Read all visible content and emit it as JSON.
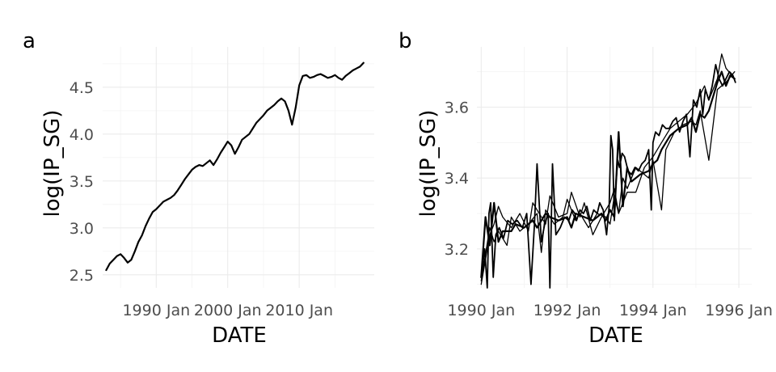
{
  "chart_data": [
    {
      "panel": "a",
      "type": "line",
      "xlabel": "DATE",
      "ylabel": "log(IP_SG)",
      "x_ticks": [
        {
          "value": 1990,
          "label": "1990 Jan"
        },
        {
          "value": 2000,
          "label": "2000 Jan"
        },
        {
          "value": 2010,
          "label": "2010 Jan"
        }
      ],
      "y_ticks": [
        2.5,
        3.0,
        3.5,
        4.0,
        4.5
      ],
      "xlim": [
        1982.5,
        2020.5
      ],
      "ylim": [
        2.36,
        4.93
      ],
      "grid": true,
      "series": [
        {
          "stroke_width": 2.2,
          "x": [
            1983.0,
            1983.5,
            1984.0,
            1984.5,
            1985.0,
            1985.5,
            1986.0,
            1986.5,
            1987.0,
            1987.5,
            1988.0,
            1988.5,
            1989.0,
            1989.5,
            1990.0,
            1990.5,
            1991.0,
            1991.5,
            1992.0,
            1992.5,
            1993.0,
            1993.5,
            1994.0,
            1994.5,
            1995.0,
            1995.5,
            1996.0,
            1996.5,
            1997.0,
            1997.5,
            1998.0,
            1998.5,
            1999.0,
            1999.5,
            2000.0,
            2000.5,
            2001.0,
            2001.5,
            2002.0,
            2002.5,
            2003.0,
            2003.5,
            2004.0,
            2004.5,
            2005.0,
            2005.5,
            2006.0,
            2006.5,
            2007.0,
            2007.5,
            2008.0,
            2008.5,
            2009.0,
            2009.5,
            2010.0,
            2010.5,
            2011.0,
            2011.5,
            2012.0,
            2012.5,
            2013.0,
            2013.5,
            2014.0,
            2014.5,
            2015.0,
            2015.5,
            2016.0,
            2016.5,
            2017.0,
            2017.5,
            2018.0,
            2018.5,
            2019.0
          ],
          "y": [
            2.55,
            2.62,
            2.66,
            2.7,
            2.72,
            2.68,
            2.63,
            2.66,
            2.75,
            2.85,
            2.92,
            3.02,
            3.1,
            3.17,
            3.2,
            3.24,
            3.28,
            3.3,
            3.32,
            3.35,
            3.4,
            3.46,
            3.52,
            3.57,
            3.62,
            3.65,
            3.67,
            3.66,
            3.69,
            3.72,
            3.67,
            3.73,
            3.8,
            3.86,
            3.92,
            3.88,
            3.79,
            3.86,
            3.94,
            3.97,
            4.0,
            4.06,
            4.12,
            4.16,
            4.2,
            4.25,
            4.28,
            4.31,
            4.35,
            4.38,
            4.35,
            4.25,
            4.1,
            4.28,
            4.52,
            4.62,
            4.63,
            4.6,
            4.61,
            4.63,
            4.64,
            4.62,
            4.6,
            4.61,
            4.63,
            4.6,
            4.58,
            4.62,
            4.65,
            4.68,
            4.7,
            4.72,
            4.76
          ]
        }
      ]
    },
    {
      "panel": "b",
      "type": "line",
      "xlabel": "DATE",
      "ylabel": "log(IP_SG)",
      "x_ticks": [
        {
          "value": 1990,
          "label": "1990 Jan"
        },
        {
          "value": 1992,
          "label": "1992 Jan"
        },
        {
          "value": 1994,
          "label": "1994 Jan"
        },
        {
          "value": 1996,
          "label": "1996 Jan"
        }
      ],
      "y_ticks": [
        3.2,
        3.4,
        3.6
      ],
      "xlim": [
        1989.9,
        1996.3
      ],
      "ylim": [
        3.09,
        3.77
      ],
      "grid": true,
      "series": [
        {
          "stroke_width": 1.3,
          "x": [
            1990.0,
            1990.1,
            1990.2,
            1990.3,
            1990.4,
            1990.5,
            1990.7,
            1990.9,
            1991.1,
            1991.2,
            1991.3,
            1991.5,
            1991.6,
            1991.8,
            1992.0,
            1992.1,
            1992.3,
            1992.4,
            1992.6,
            1992.8,
            1993.0,
            1993.1,
            1993.2,
            1993.4,
            1993.6,
            1993.8,
            1994.0,
            1994.2,
            1994.4,
            1994.6,
            1994.8,
            1995.0,
            1995.2,
            1995.3,
            1995.5,
            1995.6,
            1995.7,
            1995.9
          ],
          "y": [
            3.1,
            3.17,
            3.24,
            3.27,
            3.32,
            3.29,
            3.26,
            3.3,
            3.25,
            3.33,
            3.31,
            3.27,
            3.35,
            3.29,
            3.3,
            3.36,
            3.29,
            3.33,
            3.24,
            3.29,
            3.33,
            3.37,
            3.3,
            3.36,
            3.36,
            3.43,
            3.46,
            3.5,
            3.54,
            3.56,
            3.58,
            3.61,
            3.66,
            3.62,
            3.68,
            3.75,
            3.71,
            3.68
          ]
        },
        {
          "stroke_width": 2.2,
          "x": [
            1990.0,
            1990.1,
            1990.2,
            1990.3,
            1990.4,
            1990.5,
            1990.7,
            1990.8,
            1991.0,
            1991.2,
            1991.3,
            1991.5,
            1991.6,
            1991.8,
            1992.0,
            1992.1,
            1992.2,
            1992.4,
            1992.6,
            1992.7,
            1992.8,
            1992.9,
            1993.0,
            1993.1,
            1993.2,
            1993.3,
            1993.4,
            1993.5,
            1993.7,
            1993.9,
            1994.0,
            1994.1,
            1994.2,
            1994.4,
            1994.6,
            1994.8,
            1994.9,
            1995.0,
            1995.1,
            1995.2,
            1995.3,
            1995.4,
            1995.5,
            1995.6,
            1995.7,
            1995.8,
            1995.9
          ],
          "y": [
            3.12,
            3.29,
            3.21,
            3.33,
            3.22,
            3.25,
            3.25,
            3.27,
            3.26,
            3.28,
            3.26,
            3.3,
            3.29,
            3.28,
            3.29,
            3.26,
            3.3,
            3.29,
            3.28,
            3.29,
            3.3,
            3.28,
            3.31,
            3.29,
            3.53,
            3.32,
            3.43,
            3.39,
            3.41,
            3.42,
            3.44,
            3.45,
            3.48,
            3.52,
            3.54,
            3.55,
            3.57,
            3.53,
            3.58,
            3.57,
            3.59,
            3.63,
            3.67,
            3.7,
            3.66,
            3.69,
            3.68
          ]
        },
        {
          "stroke_width": 1.3,
          "x": [
            1990.0,
            1990.2,
            1990.3,
            1990.4,
            1990.6,
            1990.7,
            1990.9,
            1991.1,
            1991.3,
            1991.4,
            1991.5,
            1991.7,
            1991.9,
            1992.0,
            1992.2,
            1992.3,
            1992.5,
            1992.7,
            1992.9,
            1993.0,
            1993.1,
            1993.2,
            1993.3,
            1993.4,
            1993.6,
            1993.8,
            1993.9,
            1994.0,
            1994.2,
            1994.3,
            1994.5,
            1994.7,
            1994.9,
            1995.0,
            1995.1,
            1995.3,
            1995.5,
            1995.7,
            1995.9
          ],
          "y": [
            3.11,
            3.26,
            3.22,
            3.25,
            3.21,
            3.29,
            3.25,
            3.27,
            3.3,
            3.19,
            3.31,
            3.27,
            3.29,
            3.34,
            3.28,
            3.3,
            3.26,
            3.3,
            3.29,
            3.27,
            3.35,
            3.3,
            3.4,
            3.37,
            3.43,
            3.41,
            3.4,
            3.45,
            3.31,
            3.48,
            3.53,
            3.55,
            3.56,
            3.55,
            3.59,
            3.45,
            3.65,
            3.67,
            3.7
          ]
        },
        {
          "stroke_width": 1.8,
          "x": [
            1990.02,
            1990.08,
            1990.14,
            1990.18,
            1990.22,
            1990.28,
            1990.34,
            1990.42,
            1990.52,
            1990.62,
            1990.72,
            1990.84,
            1990.96,
            1991.06,
            1991.16,
            1991.24,
            1991.3,
            1991.4,
            1991.48,
            1991.56,
            1991.6,
            1991.66,
            1991.74,
            1991.84,
            1991.94,
            1992.04,
            1992.12,
            1992.18,
            1992.22,
            1992.3,
            1992.38,
            1992.46,
            1992.54,
            1992.62,
            1992.7,
            1992.76,
            1992.84,
            1992.92,
            1992.98,
            1993.02,
            1993.06,
            1993.1,
            1993.14,
            1993.18,
            1993.22,
            1993.28,
            1993.34,
            1993.42,
            1993.5,
            1993.58,
            1993.66,
            1993.74,
            1993.82,
            1993.9,
            1993.96,
            1994.0,
            1994.06,
            1994.14,
            1994.22,
            1994.3,
            1994.38,
            1994.46,
            1994.54,
            1994.62,
            1994.7,
            1994.78,
            1994.86,
            1994.94,
            1995.02,
            1995.1,
            1995.16,
            1995.22,
            1995.3,
            1995.38,
            1995.46,
            1995.54,
            1995.62,
            1995.7,
            1995.78,
            1995.86,
            1995.92
          ],
          "y": [
            3.14,
            3.2,
            3.09,
            3.3,
            3.33,
            3.12,
            3.24,
            3.26,
            3.23,
            3.28,
            3.27,
            3.28,
            3.26,
            3.3,
            3.1,
            3.27,
            3.44,
            3.22,
            3.27,
            3.3,
            3.09,
            3.44,
            3.24,
            3.26,
            3.29,
            3.28,
            3.31,
            3.3,
            3.28,
            3.31,
            3.3,
            3.32,
            3.28,
            3.31,
            3.3,
            3.33,
            3.31,
            3.24,
            3.32,
            3.52,
            3.48,
            3.28,
            3.39,
            3.45,
            3.43,
            3.47,
            3.46,
            3.42,
            3.41,
            3.43,
            3.42,
            3.44,
            3.45,
            3.48,
            3.31,
            3.5,
            3.53,
            3.52,
            3.55,
            3.54,
            3.54,
            3.56,
            3.57,
            3.53,
            3.56,
            3.58,
            3.46,
            3.62,
            3.6,
            3.65,
            3.58,
            3.65,
            3.62,
            3.66,
            3.72,
            3.68,
            3.66,
            3.68,
            3.7,
            3.69,
            3.67
          ]
        }
      ]
    }
  ]
}
